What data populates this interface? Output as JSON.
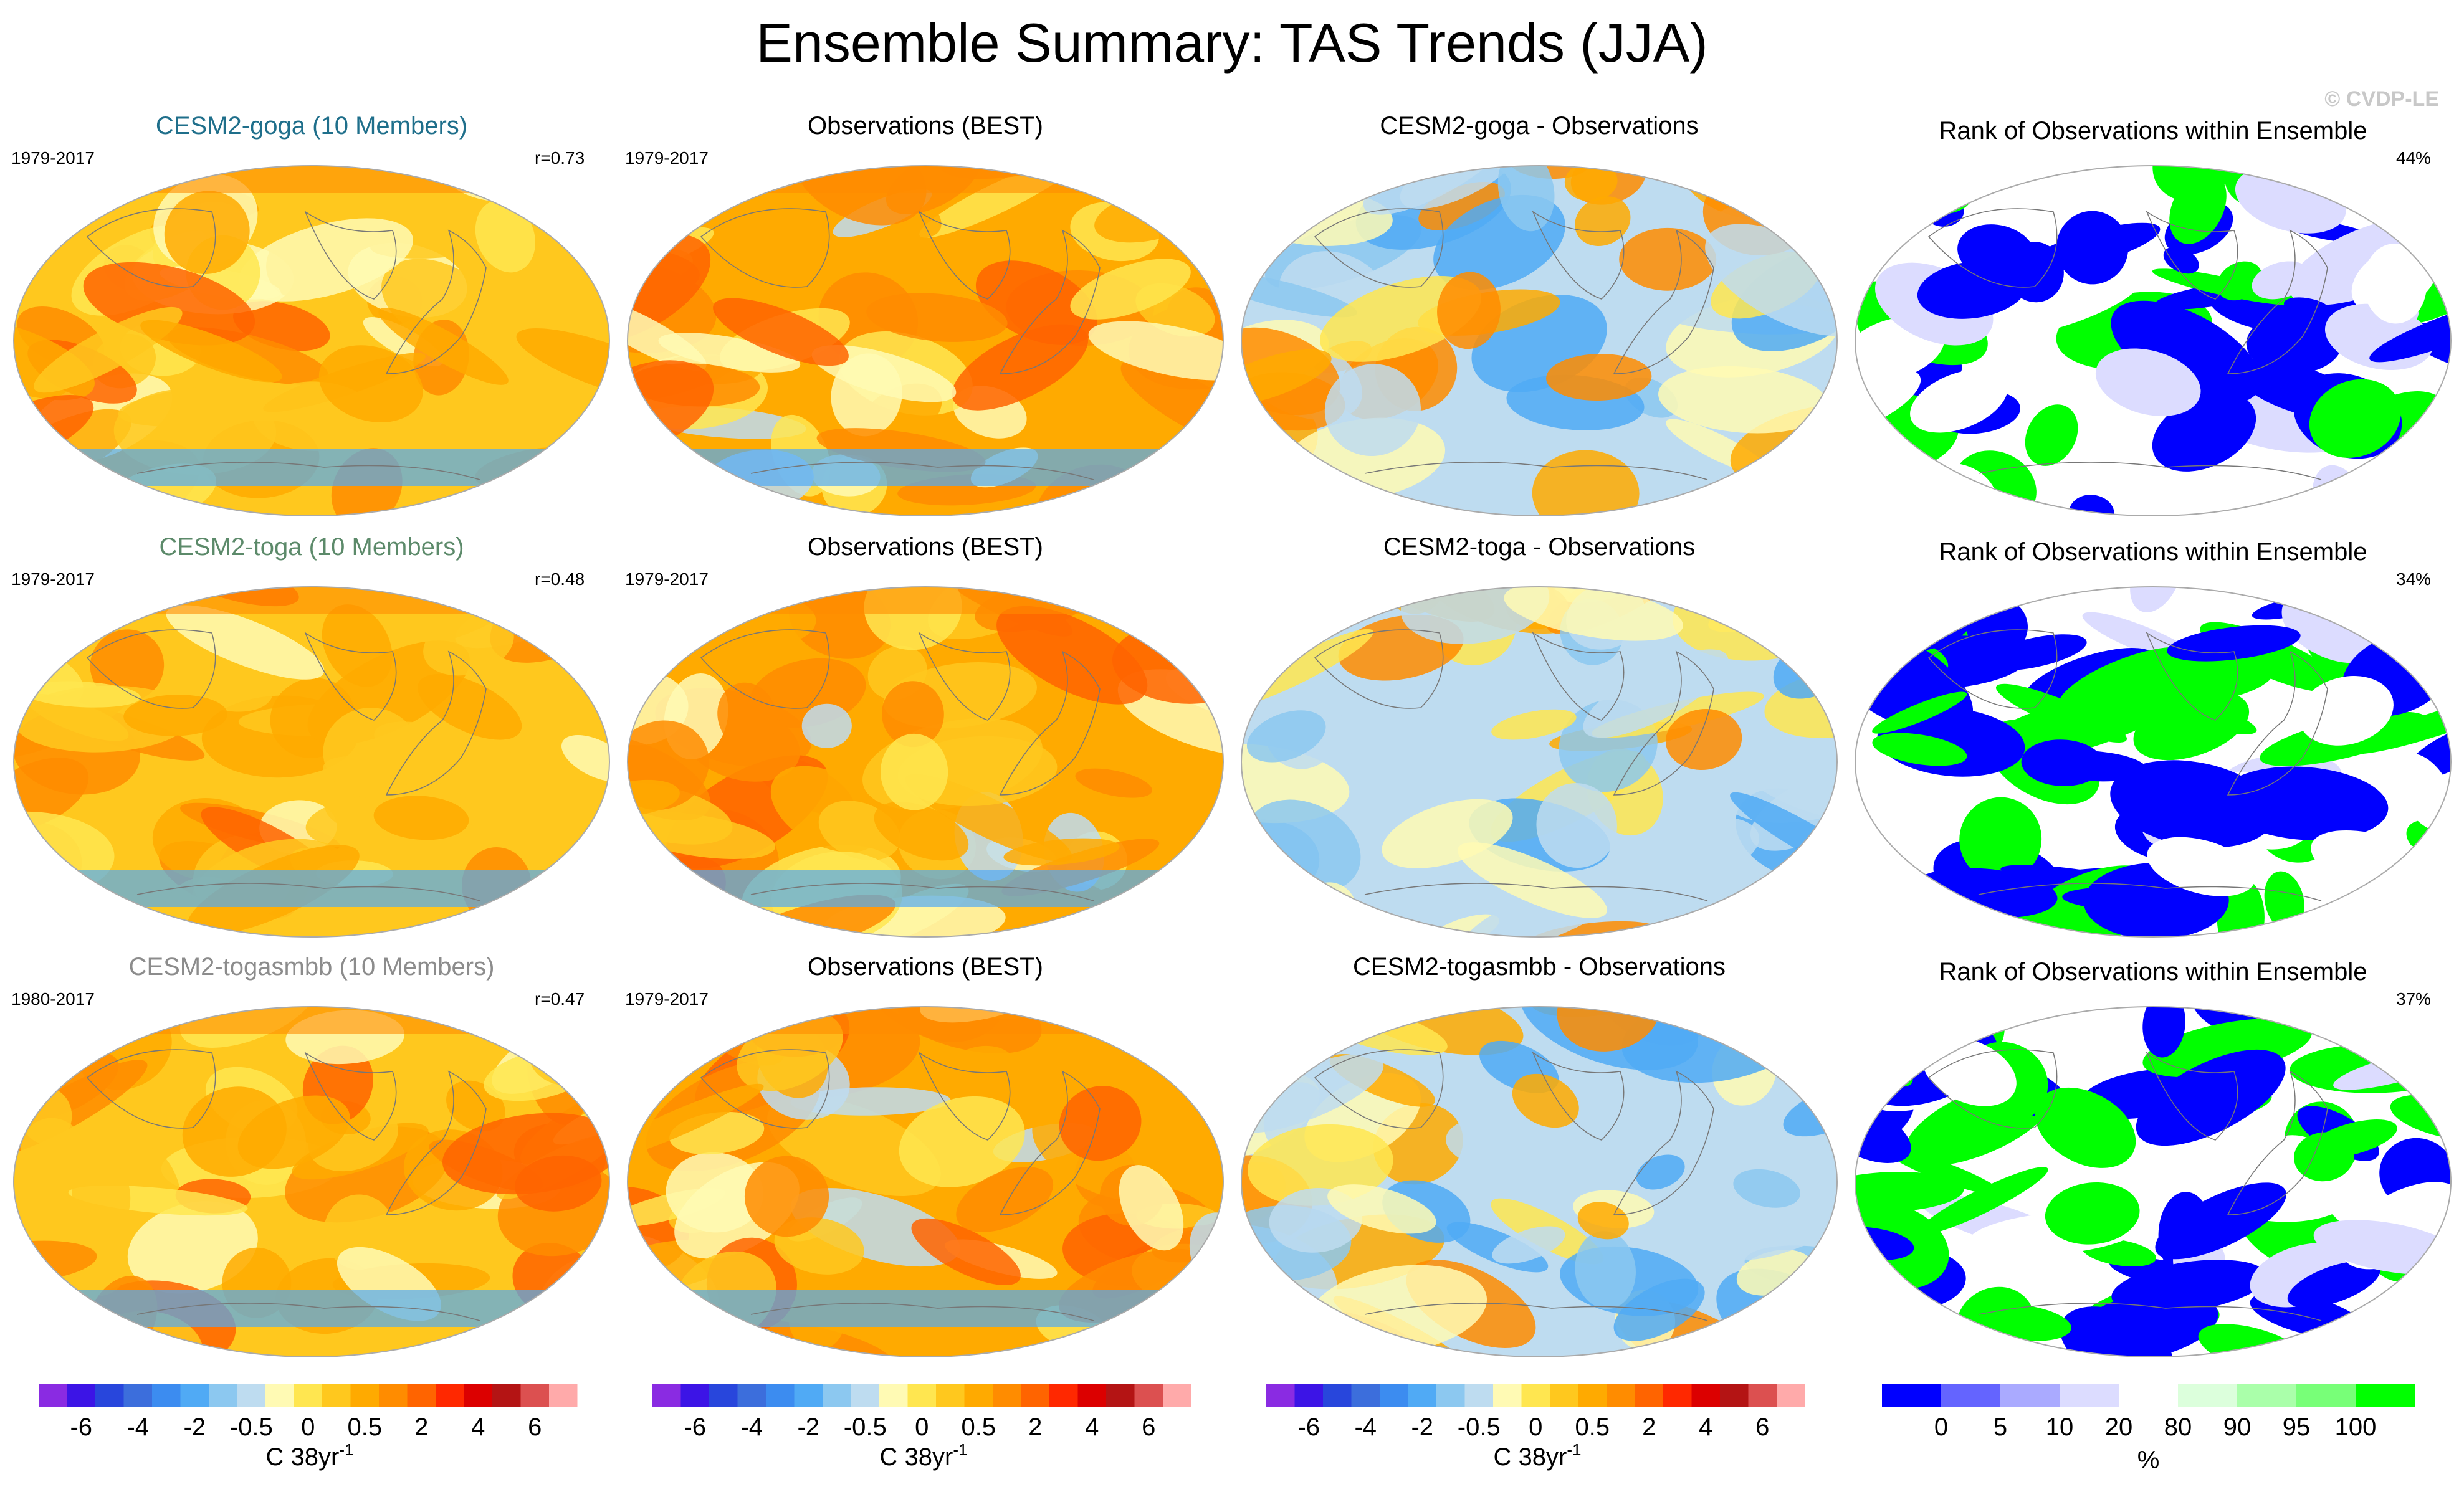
{
  "title": "Ensemble Summary: TAS Trends (JJA)",
  "copyright": "© CVDP-LE",
  "rows": [
    {
      "model_title": "CESM2-goga (10 Members)",
      "model_title_color": "#1f6f8b",
      "model_period": "1979-2017",
      "correlation": "r=0.73",
      "obs_title": "Observations (BEST)",
      "obs_period": "1979-2017",
      "diff_title": "CESM2-goga - Observations",
      "rank_title": "Rank of Observations within Ensemble",
      "rank_percent": "44%"
    },
    {
      "model_title": "CESM2-toga (10 Members)",
      "model_title_color": "#5c8a6a",
      "model_period": "1979-2017",
      "correlation": "r=0.48",
      "obs_title": "Observations (BEST)",
      "obs_period": "1979-2017",
      "diff_title": "CESM2-toga - Observations",
      "rank_title": "Rank of Observations within Ensemble",
      "rank_percent": "34%"
    },
    {
      "model_title": "CESM2-togasmbb (10 Members)",
      "model_title_color": "#8c8c8c",
      "model_period": "1980-2017",
      "correlation": "r=0.47",
      "obs_title": "Observations (BEST)",
      "obs_period": "1979-2017",
      "diff_title": "CESM2-togasmbb - Observations",
      "rank_title": "Rank of Observations within Ensemble",
      "rank_percent": "37%"
    }
  ],
  "chart_data": {
    "type": "heatmap",
    "description_kind": "global maps of surface air temperature trends",
    "trend_colorbar": {
      "tick_labels": [
        "-6",
        "-4",
        "-2",
        "-0.5",
        "0",
        "0.5",
        "2",
        "4",
        "6"
      ],
      "unit_label": "C 38yr",
      "unit_exponent": "-1",
      "colors": [
        "#8a2be2",
        "#3c14e6",
        "#2846dc",
        "#3c6edc",
        "#3c8cf0",
        "#50aaf5",
        "#8cc8f0",
        "#bedcf0",
        "#fffab4",
        "#ffe650",
        "#ffc81e",
        "#ffaa00",
        "#ff8c00",
        "#ff6400",
        "#ff2800",
        "#dc0000",
        "#b41414",
        "#dc5050",
        "#ffaaaa"
      ]
    },
    "rank_colorbar": {
      "tick_labels": [
        "0",
        "5",
        "10",
        "20",
        "80",
        "90",
        "95",
        "100"
      ],
      "unit_label": "%",
      "colors": [
        "#0000ff",
        "#6464ff",
        "#aaaaff",
        "#dcdcff",
        "#ffffff",
        "#dcffdc",
        "#aaffaa",
        "#78ff78",
        "#00ff00"
      ]
    }
  }
}
